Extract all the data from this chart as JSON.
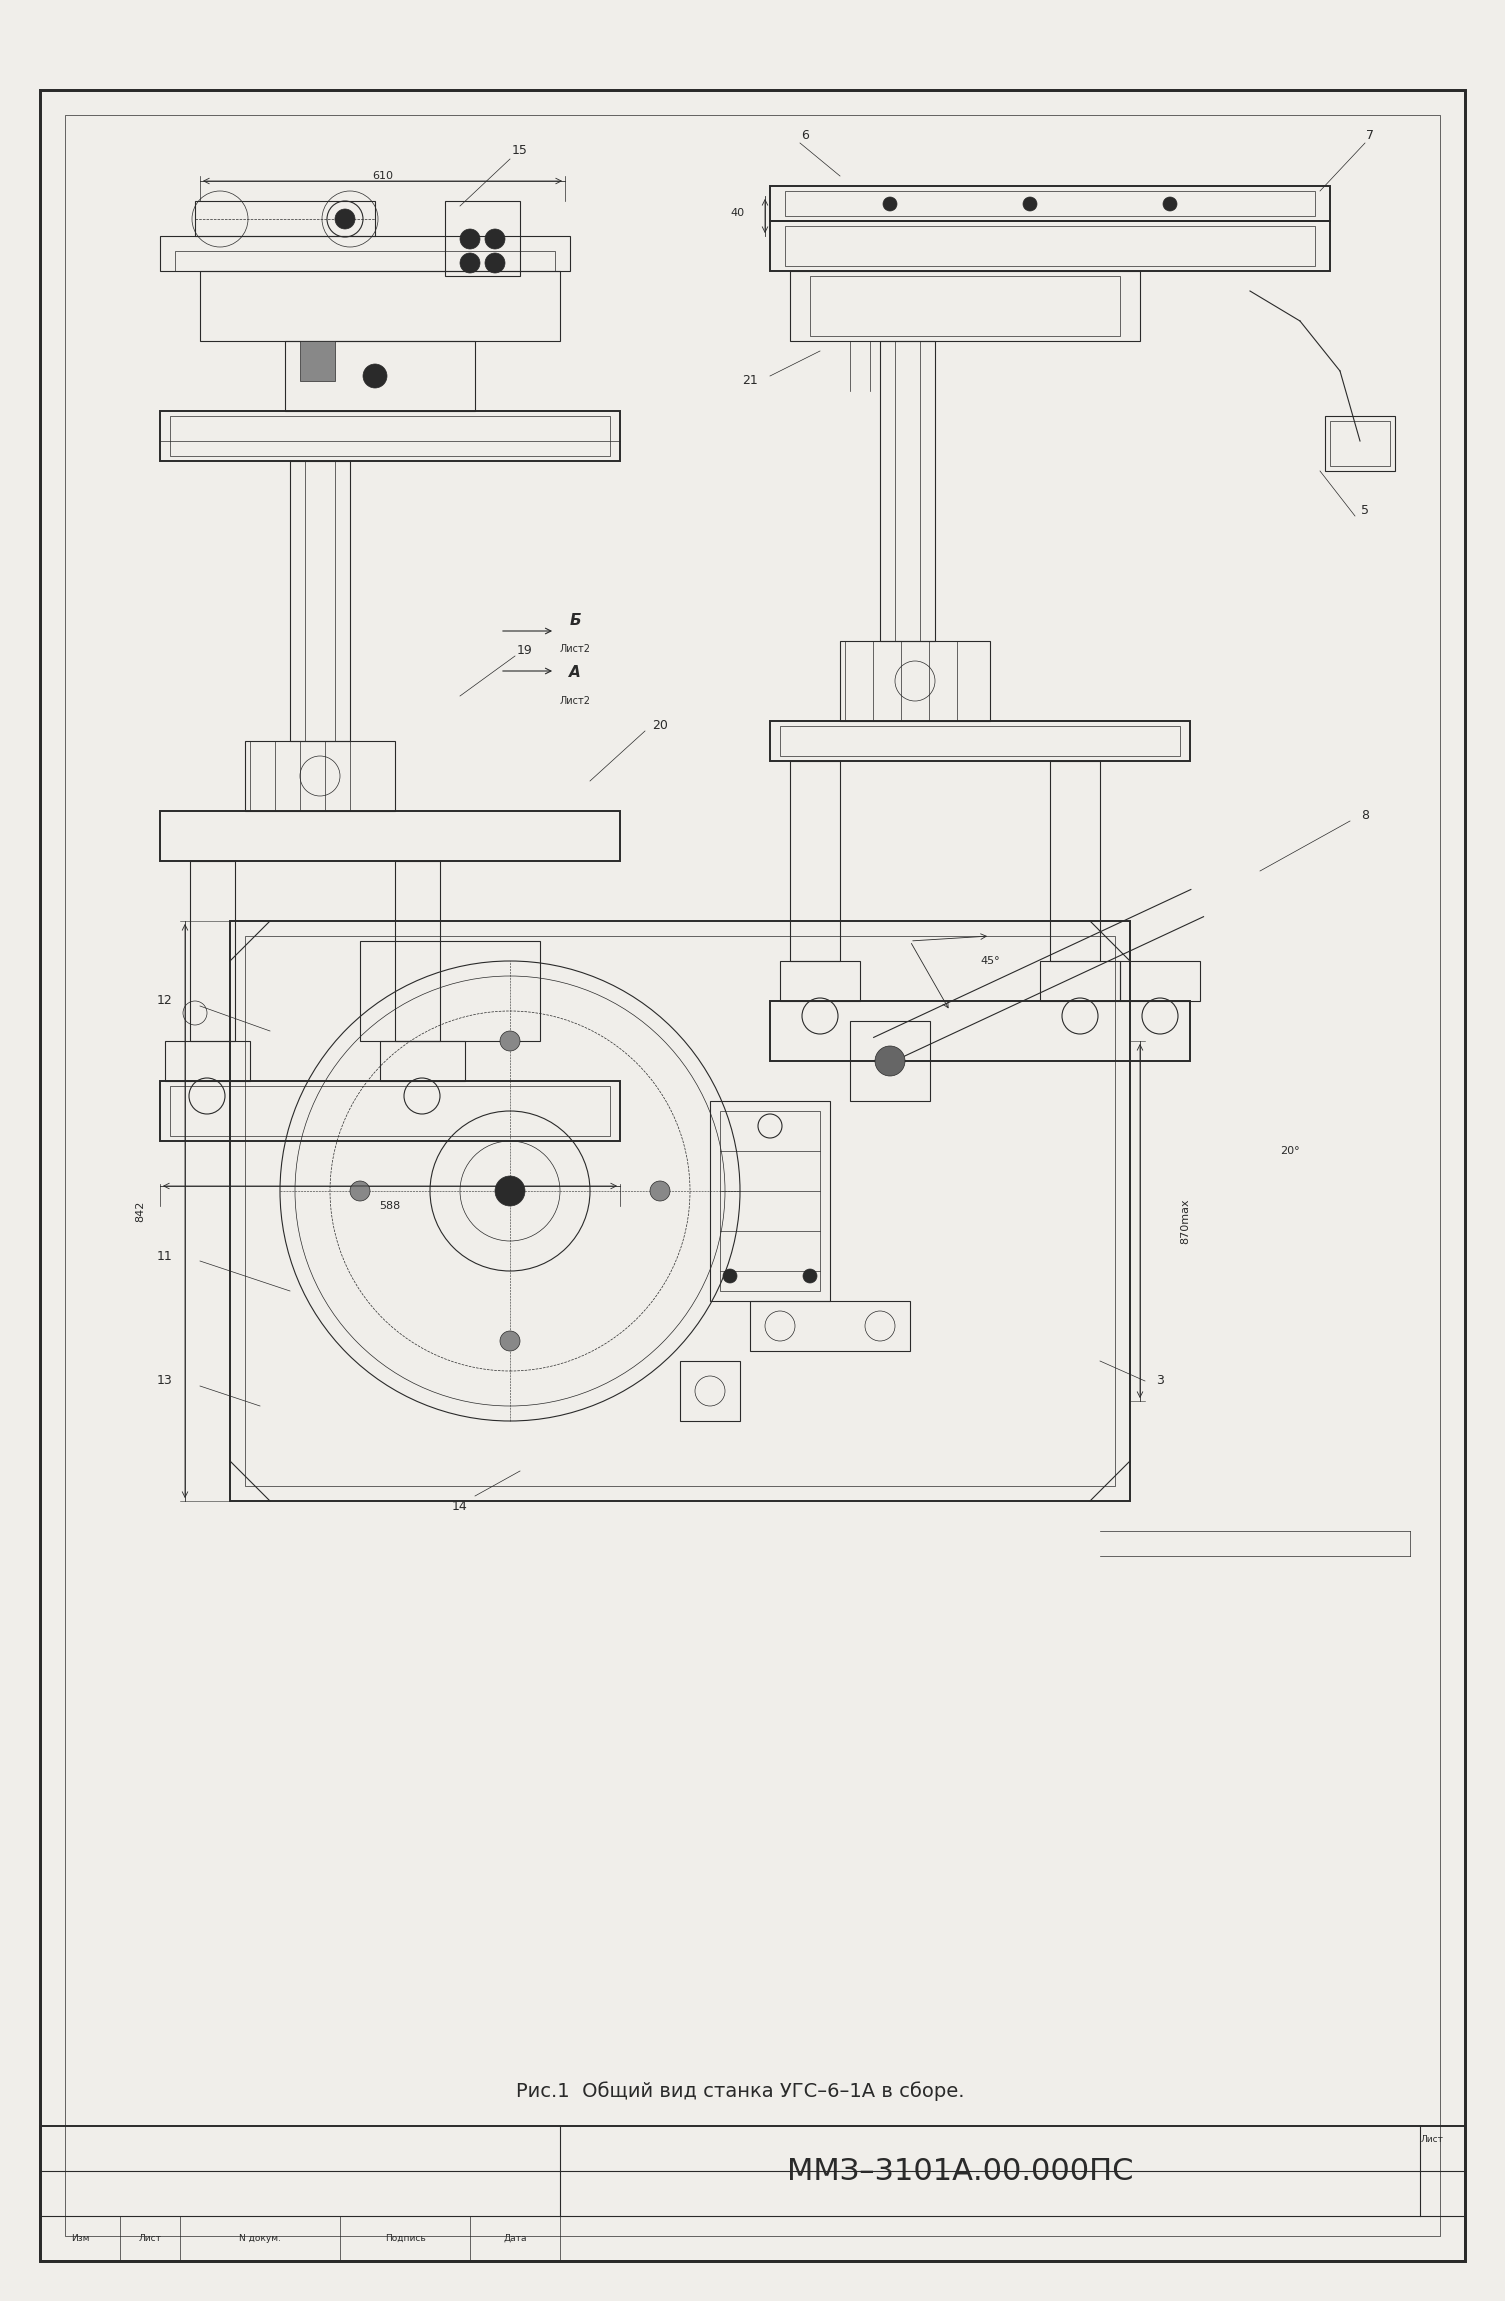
{
  "background_color": "#f0eeea",
  "border_color": "#2a2a2a",
  "line_color": "#2a2a2a",
  "title_text": "ММЗ–3101А.00.000ПС",
  "caption_text": "Рис.1  Общий вид станка УГС–6–1А в сборе.",
  "title_fontsize": 22,
  "caption_fontsize": 14,
  "page_width": 14.85,
  "page_height": 22.81
}
